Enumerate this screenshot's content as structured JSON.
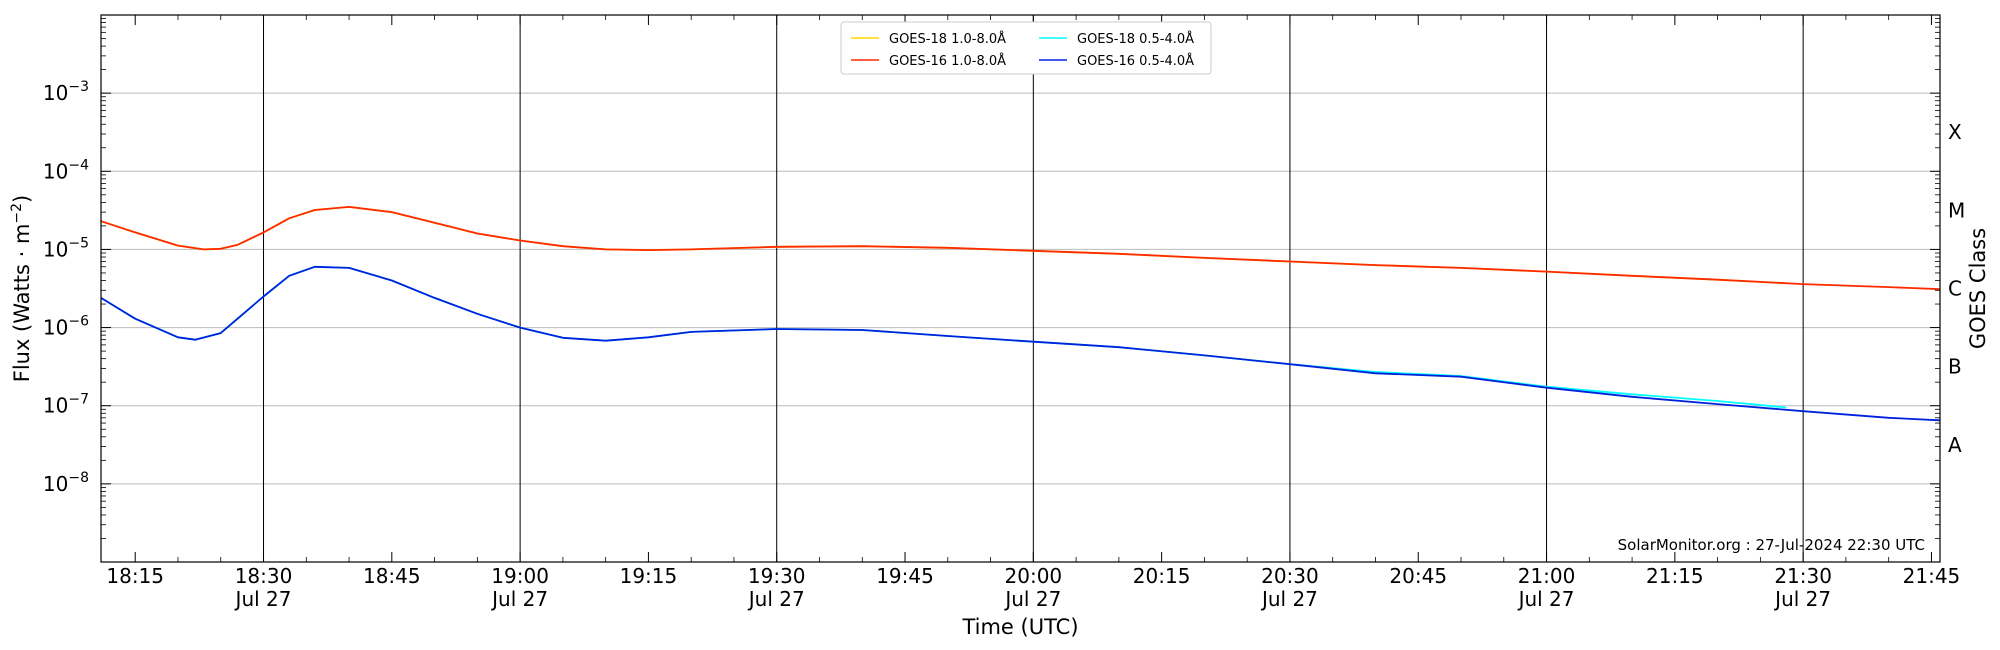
{
  "chart_data": {
    "type": "line",
    "xlabel": "Time (UTC)",
    "ylabel_main": "Flux (Watts · m",
    "ylabel_sup": "−2",
    "ylabel_close": ")",
    "ylabel_right": "GOES Class",
    "y_scale": "log",
    "xlim": [
      "2024-07-27T18:11",
      "2024-07-27T21:46"
    ],
    "ylim": [
      1e-09,
      0.01
    ],
    "x_ticks": [
      {
        "t": "2024-07-27T18:15",
        "label": "18:15",
        "sublabel": ""
      },
      {
        "t": "2024-07-27T18:30",
        "label": "18:30",
        "sublabel": "Jul 27"
      },
      {
        "t": "2024-07-27T18:45",
        "label": "18:45",
        "sublabel": ""
      },
      {
        "t": "2024-07-27T19:00",
        "label": "19:00",
        "sublabel": "Jul 27"
      },
      {
        "t": "2024-07-27T19:15",
        "label": "19:15",
        "sublabel": ""
      },
      {
        "t": "2024-07-27T19:30",
        "label": "19:30",
        "sublabel": "Jul 27"
      },
      {
        "t": "2024-07-27T19:45",
        "label": "19:45",
        "sublabel": ""
      },
      {
        "t": "2024-07-27T20:00",
        "label": "20:00",
        "sublabel": "Jul 27"
      },
      {
        "t": "2024-07-27T20:15",
        "label": "20:15",
        "sublabel": ""
      },
      {
        "t": "2024-07-27T20:30",
        "label": "20:30",
        "sublabel": "Jul 27"
      },
      {
        "t": "2024-07-27T20:45",
        "label": "20:45",
        "sublabel": ""
      },
      {
        "t": "2024-07-27T21:00",
        "label": "21:00",
        "sublabel": "Jul 27"
      },
      {
        "t": "2024-07-27T21:15",
        "label": "21:15",
        "sublabel": ""
      },
      {
        "t": "2024-07-27T21:30",
        "label": "21:30",
        "sublabel": "Jul 27"
      },
      {
        "t": "2024-07-27T21:45",
        "label": "21:45",
        "sublabel": ""
      }
    ],
    "y_ticks": [
      {
        "value": 1e-08,
        "base": "10",
        "exp": "−8"
      },
      {
        "value": 1e-07,
        "base": "10",
        "exp": "−7"
      },
      {
        "value": 1e-06,
        "base": "10",
        "exp": "−6"
      },
      {
        "value": 1e-05,
        "base": "10",
        "exp": "−5"
      },
      {
        "value": 0.0001,
        "base": "10",
        "exp": "−4"
      },
      {
        "value": 0.001,
        "base": "10",
        "exp": "−3"
      }
    ],
    "class_labels": [
      {
        "label": "A",
        "value": 3.16e-08
      },
      {
        "label": "B",
        "value": 3.16e-07
      },
      {
        "label": "C",
        "value": 3.16e-06
      },
      {
        "label": "M",
        "value": 3.16e-05
      },
      {
        "label": "X",
        "value": 0.000316
      }
    ],
    "vertical_lines": [
      "2024-07-27T18:30",
      "2024-07-27T19:00",
      "2024-07-27T19:30",
      "2024-07-27T20:00",
      "2024-07-27T20:30",
      "2024-07-27T21:00",
      "2024-07-27T21:30"
    ],
    "grid": "horizontal at decades",
    "legend_position": "top-center",
    "legend_layout": [
      [
        "GOES-18 1.0-8.0Å",
        "GOES-18 0.5-4.0Å"
      ],
      [
        "GOES-16 1.0-8.0Å",
        "GOES-16 0.5-4.0Å"
      ]
    ],
    "series": [
      {
        "name": "GOES-18 1.0-8.0Å",
        "color": "#ffd700",
        "points": [
          [
            "2024-07-27T18:11",
            2.3e-05
          ],
          [
            "2024-07-27T18:15",
            1.65e-05
          ],
          [
            "2024-07-27T18:20",
            1.12e-05
          ],
          [
            "2024-07-27T18:23",
            1e-05
          ],
          [
            "2024-07-27T18:25",
            1.02e-05
          ],
          [
            "2024-07-27T18:27",
            1.15e-05
          ],
          [
            "2024-07-27T18:30",
            1.65e-05
          ],
          [
            "2024-07-27T18:33",
            2.5e-05
          ],
          [
            "2024-07-27T18:36",
            3.2e-05
          ],
          [
            "2024-07-27T18:40",
            3.5e-05
          ],
          [
            "2024-07-27T18:45",
            3e-05
          ],
          [
            "2024-07-27T18:50",
            2.2e-05
          ],
          [
            "2024-07-27T18:55",
            1.6e-05
          ],
          [
            "2024-07-27T19:00",
            1.3e-05
          ],
          [
            "2024-07-27T19:05",
            1.1e-05
          ],
          [
            "2024-07-27T19:10",
            1e-05
          ],
          [
            "2024-07-27T19:15",
            9.8e-06
          ],
          [
            "2024-07-27T19:20",
            1e-05
          ],
          [
            "2024-07-27T19:30",
            1.08e-05
          ],
          [
            "2024-07-27T19:40",
            1.1e-05
          ],
          [
            "2024-07-27T19:50",
            1.05e-05
          ],
          [
            "2024-07-27T20:00",
            9.6e-06
          ],
          [
            "2024-07-27T20:10",
            8.8e-06
          ],
          [
            "2024-07-27T20:20",
            7.8e-06
          ],
          [
            "2024-07-27T20:30",
            7e-06
          ],
          [
            "2024-07-27T20:40",
            6.3e-06
          ],
          [
            "2024-07-27T20:50",
            5.8e-06
          ],
          [
            "2024-07-27T21:00",
            5.2e-06
          ],
          [
            "2024-07-27T21:10",
            4.6e-06
          ],
          [
            "2024-07-27T21:20",
            4.1e-06
          ],
          [
            "2024-07-27T21:28",
            3.7e-06
          ]
        ]
      },
      {
        "name": "GOES-18 0.5-4.0Å",
        "color": "#00ffff",
        "points": [
          [
            "2024-07-27T18:11",
            2.4e-06
          ],
          [
            "2024-07-27T18:15",
            1.3e-06
          ],
          [
            "2024-07-27T18:20",
            7.5e-07
          ],
          [
            "2024-07-27T18:22",
            7e-07
          ],
          [
            "2024-07-27T18:25",
            8.5e-07
          ],
          [
            "2024-07-27T18:30",
            2.5e-06
          ],
          [
            "2024-07-27T18:33",
            4.6e-06
          ],
          [
            "2024-07-27T18:36",
            6e-06
          ],
          [
            "2024-07-27T18:40",
            5.8e-06
          ],
          [
            "2024-07-27T18:45",
            4e-06
          ],
          [
            "2024-07-27T18:50",
            2.4e-06
          ],
          [
            "2024-07-27T18:55",
            1.5e-06
          ],
          [
            "2024-07-27T19:00",
            1e-06
          ],
          [
            "2024-07-27T19:05",
            7.4e-07
          ],
          [
            "2024-07-27T19:10",
            6.8e-07
          ],
          [
            "2024-07-27T19:15",
            7.5e-07
          ],
          [
            "2024-07-27T19:20",
            8.8e-07
          ],
          [
            "2024-07-27T19:30",
            9.6e-07
          ],
          [
            "2024-07-27T19:40",
            9.3e-07
          ],
          [
            "2024-07-27T19:50",
            7.8e-07
          ],
          [
            "2024-07-27T20:00",
            6.6e-07
          ],
          [
            "2024-07-27T20:10",
            5.6e-07
          ],
          [
            "2024-07-27T20:20",
            4.4e-07
          ],
          [
            "2024-07-27T20:30",
            3.4e-07
          ],
          [
            "2024-07-27T20:40",
            2.7e-07
          ],
          [
            "2024-07-27T20:50",
            2.4e-07
          ],
          [
            "2024-07-27T21:00",
            1.75e-07
          ],
          [
            "2024-07-27T21:10",
            1.4e-07
          ],
          [
            "2024-07-27T21:20",
            1.15e-07
          ],
          [
            "2024-07-27T21:28",
            9.5e-08
          ]
        ]
      },
      {
        "name": "GOES-16 1.0-8.0Å",
        "color": "#ff2a00",
        "points": [
          [
            "2024-07-27T18:11",
            2.3e-05
          ],
          [
            "2024-07-27T18:15",
            1.65e-05
          ],
          [
            "2024-07-27T18:20",
            1.12e-05
          ],
          [
            "2024-07-27T18:23",
            1e-05
          ],
          [
            "2024-07-27T18:25",
            1.02e-05
          ],
          [
            "2024-07-27T18:27",
            1.15e-05
          ],
          [
            "2024-07-27T18:30",
            1.65e-05
          ],
          [
            "2024-07-27T18:33",
            2.5e-05
          ],
          [
            "2024-07-27T18:36",
            3.2e-05
          ],
          [
            "2024-07-27T18:40",
            3.5e-05
          ],
          [
            "2024-07-27T18:45",
            3e-05
          ],
          [
            "2024-07-27T18:50",
            2.2e-05
          ],
          [
            "2024-07-27T18:55",
            1.6e-05
          ],
          [
            "2024-07-27T19:00",
            1.3e-05
          ],
          [
            "2024-07-27T19:05",
            1.1e-05
          ],
          [
            "2024-07-27T19:10",
            1e-05
          ],
          [
            "2024-07-27T19:15",
            9.8e-06
          ],
          [
            "2024-07-27T19:20",
            1e-05
          ],
          [
            "2024-07-27T19:30",
            1.08e-05
          ],
          [
            "2024-07-27T19:40",
            1.1e-05
          ],
          [
            "2024-07-27T19:50",
            1.05e-05
          ],
          [
            "2024-07-27T20:00",
            9.6e-06
          ],
          [
            "2024-07-27T20:10",
            8.8e-06
          ],
          [
            "2024-07-27T20:20",
            7.8e-06
          ],
          [
            "2024-07-27T20:30",
            7e-06
          ],
          [
            "2024-07-27T20:40",
            6.3e-06
          ],
          [
            "2024-07-27T20:50",
            5.8e-06
          ],
          [
            "2024-07-27T21:00",
            5.2e-06
          ],
          [
            "2024-07-27T21:10",
            4.6e-06
          ],
          [
            "2024-07-27T21:20",
            4.1e-06
          ],
          [
            "2024-07-27T21:30",
            3.6e-06
          ],
          [
            "2024-07-27T21:40",
            3.3e-06
          ],
          [
            "2024-07-27T21:46",
            3.1e-06
          ]
        ]
      },
      {
        "name": "GOES-16 0.5-4.0Å",
        "color": "#0022dd",
        "points": [
          [
            "2024-07-27T18:11",
            2.4e-06
          ],
          [
            "2024-07-27T18:15",
            1.3e-06
          ],
          [
            "2024-07-27T18:20",
            7.5e-07
          ],
          [
            "2024-07-27T18:22",
            7e-07
          ],
          [
            "2024-07-27T18:25",
            8.5e-07
          ],
          [
            "2024-07-27T18:30",
            2.5e-06
          ],
          [
            "2024-07-27T18:33",
            4.6e-06
          ],
          [
            "2024-07-27T18:36",
            6e-06
          ],
          [
            "2024-07-27T18:40",
            5.8e-06
          ],
          [
            "2024-07-27T18:45",
            4e-06
          ],
          [
            "2024-07-27T18:50",
            2.4e-06
          ],
          [
            "2024-07-27T18:55",
            1.5e-06
          ],
          [
            "2024-07-27T19:00",
            1e-06
          ],
          [
            "2024-07-27T19:05",
            7.4e-07
          ],
          [
            "2024-07-27T19:10",
            6.8e-07
          ],
          [
            "2024-07-27T19:15",
            7.5e-07
          ],
          [
            "2024-07-27T19:20",
            8.8e-07
          ],
          [
            "2024-07-27T19:30",
            9.6e-07
          ],
          [
            "2024-07-27T19:40",
            9.3e-07
          ],
          [
            "2024-07-27T19:50",
            7.8e-07
          ],
          [
            "2024-07-27T20:00",
            6.6e-07
          ],
          [
            "2024-07-27T20:10",
            5.6e-07
          ],
          [
            "2024-07-27T20:20",
            4.4e-07
          ],
          [
            "2024-07-27T20:30",
            3.4e-07
          ],
          [
            "2024-07-27T20:40",
            2.6e-07
          ],
          [
            "2024-07-27T20:50",
            2.35e-07
          ],
          [
            "2024-07-27T21:00",
            1.7e-07
          ],
          [
            "2024-07-27T21:10",
            1.3e-07
          ],
          [
            "2024-07-27T21:20",
            1.05e-07
          ],
          [
            "2024-07-27T21:30",
            8.5e-08
          ],
          [
            "2024-07-27T21:40",
            7e-08
          ],
          [
            "2024-07-27T21:46",
            6.5e-08
          ]
        ]
      }
    ]
  },
  "watermark": "SolarMonitor.org : 27-Jul-2024 22:30 UTC"
}
